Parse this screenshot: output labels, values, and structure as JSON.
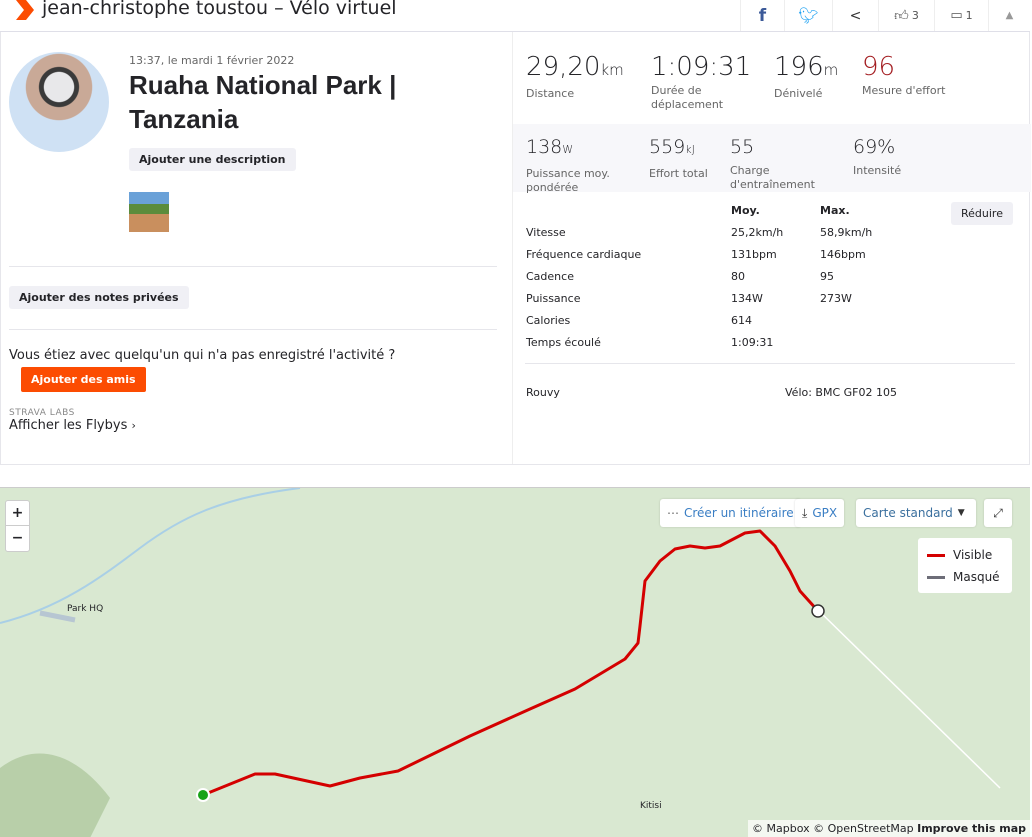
{
  "header": {
    "title": "jean-christophe toustou – Vélo virtuel",
    "kudos_count": "3",
    "comments_count": "1",
    "icons": [
      "facebook-icon",
      "twitter-icon",
      "share-icon",
      "thumbs-up-icon",
      "comment-icon",
      "collapse-icon"
    ]
  },
  "activity": {
    "date": "13:37, le mardi 1 février 2022",
    "title": "Ruaha National Park | Tanzania",
    "add_description": "Ajouter une description",
    "add_notes": "Ajouter des notes privées",
    "companion_question": "Vous étiez avec quelqu'un qui n'a pas enregistré l'activité ?",
    "add_friends": "Ajouter des amis",
    "labs_label": "STRAVA LABS",
    "flybys": "Afficher les Flybys"
  },
  "stats": {
    "primary": [
      {
        "value": "29,20",
        "unit": "km",
        "label": "Distance"
      },
      {
        "value": "1:09:31",
        "unit": "",
        "label": "Durée de déplacement"
      },
      {
        "value": "196",
        "unit": "m",
        "label": "Dénivelé"
      },
      {
        "value": "96",
        "unit": "",
        "label": "Mesure d'effort",
        "color": "#a41e22"
      }
    ],
    "secondary": [
      {
        "value": "138",
        "unit": "W",
        "label": "Puissance moy. pondérée"
      },
      {
        "value": "559",
        "unit": "kJ",
        "label": "Effort total"
      },
      {
        "value": "55",
        "unit": "",
        "label": "Charge d'entraînement"
      },
      {
        "value": "69%",
        "unit": "",
        "label": "Intensité"
      }
    ]
  },
  "details": {
    "col_avg": "Moy.",
    "col_max": "Max.",
    "collapse": "Réduire",
    "rows": [
      {
        "label": "Vitesse",
        "avg": "25,2km/h",
        "max": "58,9km/h"
      },
      {
        "label": "Fréquence cardiaque",
        "avg": "131bpm",
        "max": "146bpm"
      },
      {
        "label": "Cadence",
        "avg": "80",
        "max": "95"
      },
      {
        "label": "Puissance",
        "avg": "134W",
        "max": "273W"
      },
      {
        "label": "Calories",
        "avg": "614",
        "max": ""
      },
      {
        "label": "Temps écoulé",
        "avg": "1:09:31",
        "max": ""
      }
    ],
    "device": "Rouvy",
    "bike": "Vélo: BMC GF02 105"
  },
  "map": {
    "zoom_in": "+",
    "zoom_out": "−",
    "create_route": "Créer un itinéraire",
    "gpx": "GPX",
    "map_type": "Carte standard",
    "legend": [
      {
        "label": "Visible",
        "color": "#d40000"
      },
      {
        "label": "Masqué",
        "color": "#6d6d78"
      }
    ],
    "places": [
      "Park HQ",
      "Kitisi"
    ],
    "attribution": "© Mapbox © OpenStreetMap",
    "improve": "Improve this map",
    "route_color": "#d40000"
  }
}
